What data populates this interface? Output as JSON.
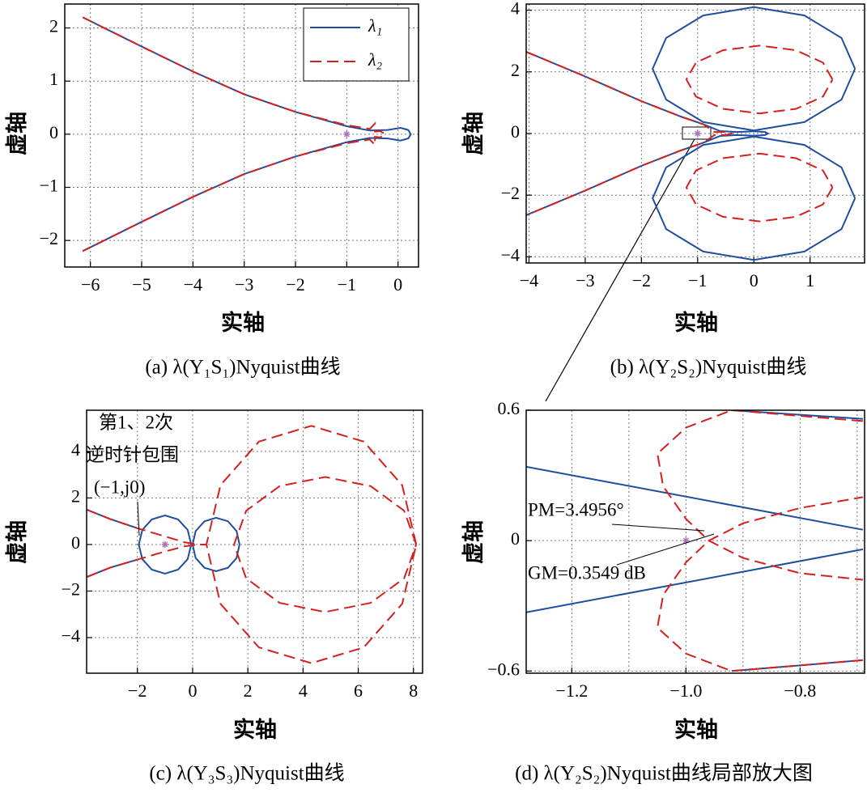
{
  "chart_data": [
    {
      "type": "line",
      "title": "(a)  λ(Y₁S₁)Nyquist曲线",
      "xlabel": "实轴",
      "ylabel": "虚轴",
      "xlim": [
        -6.5,
        0.4
      ],
      "ylim": [
        -2.5,
        2.45
      ],
      "xticks": [
        {
          "value": -6,
          "label": "−6"
        },
        {
          "value": -5,
          "label": "−5"
        },
        {
          "value": -4,
          "label": "−4"
        },
        {
          "value": -3,
          "label": "−3"
        },
        {
          "value": -2,
          "label": "−2"
        },
        {
          "value": -1,
          "label": "−1"
        },
        0
      ],
      "yticks": [
        {
          "value": -2,
          "label": "−2"
        },
        {
          "value": -1,
          "label": "−1"
        },
        0,
        1,
        2
      ],
      "grid": true,
      "legend": "upper right",
      "point": {
        "x": -1,
        "y": 0,
        "color": "#b070c0"
      },
      "series": [
        {
          "name": "λ₁",
          "color": "#1f4e9c",
          "dash": "solid",
          "x": [
            -6.15,
            -5,
            -4,
            -3,
            -2,
            -1,
            -0.55,
            -0.2,
            0.05,
            0.2,
            0.25,
            0.2,
            0.05,
            -0.2,
            -0.55,
            -1,
            -2,
            -3,
            -4,
            -5,
            -6.15
          ],
          "values": [
            2.2,
            1.65,
            1.18,
            0.75,
            0.42,
            0.15,
            0.07,
            0.08,
            0.12,
            0.08,
            0,
            -0.08,
            -0.12,
            -0.08,
            -0.07,
            -0.15,
            -0.42,
            -0.75,
            -1.18,
            -1.65,
            -2.2
          ]
        },
        {
          "name": "λ₂",
          "color": "#d42020",
          "dash": "dashed",
          "x": [
            -6.15,
            -5,
            -4,
            -3,
            -2,
            -1,
            -0.55,
            -0.45,
            -0.45,
            -0.35,
            -0.25,
            -0.35,
            -0.45,
            -0.45,
            -0.55,
            -1,
            -2,
            -3,
            -4,
            -5,
            -6.15
          ],
          "values": [
            2.2,
            1.65,
            1.18,
            0.75,
            0.42,
            0.17,
            0.1,
            0.2,
            0.05,
            0.06,
            0,
            -0.06,
            -0.05,
            -0.2,
            -0.1,
            -0.17,
            -0.42,
            -0.75,
            -1.18,
            -1.65,
            -2.2
          ]
        }
      ]
    },
    {
      "type": "line",
      "title": "(b)  λ(Y₂S₂)Nyquist曲线",
      "xlabel": "实轴",
      "ylabel": "虚轴",
      "xlim": [
        -4.05,
        1.97
      ],
      "ylim": [
        -4.2,
        4.2
      ],
      "xticks": [
        {
          "value": -4,
          "label": "−4"
        },
        {
          "value": -3,
          "label": "−3"
        },
        {
          "value": -2,
          "label": "−2"
        },
        {
          "value": -1,
          "label": "−1"
        },
        0,
        1
      ],
      "yticks": [
        {
          "value": -4,
          "label": "−4"
        },
        {
          "value": -2,
          "label": "−2"
        },
        0,
        2,
        4
      ],
      "grid": true,
      "point": {
        "x": -1,
        "y": 0,
        "color": "#b070c0"
      },
      "series": [
        {
          "color": "#1f4e9c",
          "dash": "solid",
          "x": [
            -4.05,
            -3,
            -2,
            -1.3,
            -0.9,
            -0.6,
            -0.3,
            0,
            0.2,
            0.25,
            0.2,
            0,
            -0.3,
            -0.6,
            -0.9,
            -1.3,
            -2,
            -3,
            -4.05,
            null,
            1.8,
            1.56,
            0.9,
            0,
            -0.9,
            -1.56,
            -1.8,
            -1.56,
            -0.9,
            0,
            0.9,
            1.56,
            1.8,
            null,
            1.8,
            1.56,
            0.9,
            0,
            -0.9,
            -1.56,
            -1.8,
            -1.56,
            -0.9,
            0,
            0.9,
            1.56,
            1.8
          ],
          "values": [
            2.65,
            1.85,
            1.05,
            0.55,
            0.3,
            0.08,
            0.05,
            0.07,
            0.05,
            0,
            -0.05,
            -0.07,
            -0.05,
            -0.08,
            -0.3,
            -0.55,
            -1.05,
            -1.85,
            -2.65,
            null,
            2.1,
            3.1,
            3.83,
            4.1,
            3.83,
            3.1,
            2.1,
            1.1,
            0.37,
            0.1,
            0.37,
            1.1,
            2.1,
            null,
            -2.1,
            -3.1,
            -3.83,
            -4.1,
            -3.83,
            -3.1,
            -2.1,
            -1.1,
            -0.37,
            -0.1,
            -0.37,
            -1.1,
            -2.1
          ]
        },
        {
          "color": "#d42020",
          "dash": "dashed",
          "x": [
            -4.05,
            -3,
            -2,
            -1.3,
            -0.9,
            -0.7,
            -0.5,
            -0.4,
            -0.5,
            -0.7,
            -0.9,
            -1.3,
            -2,
            -3,
            -4.05,
            null,
            1.4,
            1.23,
            0.75,
            0.1,
            -0.55,
            -1.03,
            -1.2,
            -1.03,
            -0.55,
            0.1,
            0.75,
            1.23,
            1.4,
            null,
            1.4,
            1.23,
            0.75,
            0.1,
            -0.55,
            -1.03,
            -1.2,
            -1.03,
            -0.55,
            0.1,
            0.75,
            1.23,
            1.4
          ],
          "values": [
            2.65,
            1.85,
            1.05,
            0.55,
            0.3,
            0.05,
            0.05,
            0,
            -0.05,
            -0.05,
            -0.3,
            -0.55,
            -1.05,
            -1.85,
            -2.65,
            null,
            1.75,
            2.3,
            2.7,
            2.85,
            2.7,
            2.3,
            1.75,
            1.2,
            0.8,
            0.65,
            0.8,
            1.2,
            1.75,
            null,
            -1.75,
            -2.3,
            -2.7,
            -2.85,
            -2.7,
            -2.3,
            -1.75,
            -1.2,
            -0.8,
            -0.65,
            -0.8,
            -1.2,
            -1.75
          ]
        }
      ]
    },
    {
      "type": "line",
      "title": "(c)  λ(Y₃S₃)Nyquist曲线",
      "xlabel": "实轴",
      "ylabel": "虚轴",
      "xlim": [
        -3.84,
        8.33
      ],
      "ylim": [
        -5.53,
        5.77
      ],
      "xticks": [
        {
          "value": -2,
          "label": "−2"
        },
        0,
        2,
        4,
        6,
        8
      ],
      "yticks": [
        {
          "value": -4,
          "label": "−4"
        },
        {
          "value": -2,
          "label": "−2"
        },
        0,
        2,
        4
      ],
      "grid": true,
      "point": {
        "x": -1,
        "y": 0,
        "color": "#b070c0"
      },
      "annotations": [
        "第1、2次",
        "逆时针包围",
        "(−1,j0)"
      ],
      "series": [
        {
          "color": "#1f4e9c",
          "dash": "solid",
          "x": [
            -3.84,
            -3,
            -2,
            null,
            -3.84,
            -3,
            -2,
            null,
            -0.05,
            -0.18,
            -0.53,
            -1,
            -1.48,
            -1.82,
            -1.95,
            -1.82,
            -1.48,
            -1,
            -0.53,
            -0.18,
            -0.05,
            null,
            1.7,
            1.59,
            1.28,
            0.85,
            0.43,
            0.11,
            0,
            0.11,
            0.43,
            0.85,
            1.28,
            1.59,
            1.7
          ],
          "values": [
            1.5,
            1.1,
            0.7,
            null,
            -1.4,
            -1.0,
            -0.65,
            null,
            0,
            0.63,
            1.08,
            1.25,
            1.08,
            0.63,
            0,
            -0.63,
            -1.08,
            -1.25,
            -1.08,
            -0.63,
            0,
            null,
            0,
            0.58,
            1.0,
            1.15,
            1.0,
            0.58,
            0,
            -0.58,
            -1.0,
            -1.15,
            -1.0,
            -0.58,
            0
          ]
        },
        {
          "color": "#d42020",
          "dash": "dashed",
          "x": [
            -3.84,
            -3,
            -2,
            -1,
            -0.3,
            0.2,
            0.5,
            null,
            -3.84,
            -3,
            -2,
            -1,
            -0.3,
            0.2,
            null,
            8.1,
            7.59,
            6.2,
            4.3,
            2.4,
            1.01,
            0.5,
            1.01,
            2.4,
            4.3,
            6.2,
            7.59,
            8.1,
            null,
            8.1,
            7.66,
            6.45,
            4.8,
            3.15,
            1.94,
            1.5,
            1.94,
            3.15,
            4.8,
            6.45,
            7.66,
            8.1
          ],
          "values": [
            1.5,
            1.1,
            0.7,
            0.35,
            0.1,
            0,
            0,
            null,
            -1.4,
            -1.0,
            -0.65,
            -0.3,
            -0.08,
            0,
            null,
            0,
            2.55,
            4.42,
            5.1,
            4.42,
            2.55,
            0,
            -2.55,
            -4.42,
            -5.1,
            -4.42,
            -2.55,
            0,
            null,
            0,
            1.45,
            2.51,
            2.9,
            2.51,
            1.45,
            0,
            -1.45,
            -2.51,
            -2.9,
            -2.51,
            -1.45,
            0
          ]
        }
      ]
    },
    {
      "type": "line",
      "title": "(d)  λ(Y₂S₂)Nyquist曲线局部放大图",
      "xlabel": "实轴",
      "ylabel": "虚轴",
      "xlim": [
        -1.28,
        -0.687
      ],
      "ylim": [
        -0.61,
        0.6
      ],
      "xticks": [
        {
          "value": -1.2,
          "label": "−1.2"
        },
        {
          "value": -1.0,
          "label": "−1.0"
        },
        {
          "value": -0.8,
          "label": "−0.8"
        }
      ],
      "xminor": [
        -1.1,
        -0.9,
        -0.7
      ],
      "yticks": [
        {
          "value": -0.6,
          "label": "−0.6"
        },
        0,
        0.6
      ],
      "grid": true,
      "point": {
        "x": -1,
        "y": 0,
        "color": "#b070c0"
      },
      "annotations": [
        "PM=3.4956°",
        "GM=0.3549 dB"
      ],
      "series": [
        {
          "color": "#1f4e9c",
          "dash": "solid",
          "x": [
            -1.28,
            -0.69,
            null,
            -1.28,
            -0.69,
            null,
            -0.92,
            -0.69,
            null,
            -0.92,
            -0.69
          ],
          "values": [
            0.34,
            0.05,
            null,
            -0.33,
            -0.04,
            null,
            0.6,
            0.56,
            null,
            -0.6,
            -0.55
          ]
        },
        {
          "color": "#d42020",
          "dash": "dashed",
          "x": [
            -0.69,
            -0.92,
            -1.0,
            -1.05,
            -1.04,
            -1.0,
            -0.96,
            -0.9,
            -0.8,
            -0.69,
            null,
            -0.69,
            -0.92,
            -1.0,
            -1.05,
            -1.04,
            -1.0,
            -0.96,
            -0.9,
            -0.8,
            -0.69
          ],
          "values": [
            0.55,
            0.6,
            0.52,
            0.4,
            0.25,
            0.1,
            0,
            0.08,
            0.15,
            0.2,
            null,
            -0.55,
            -0.6,
            -0.52,
            -0.4,
            -0.25,
            -0.1,
            0,
            -0.08,
            -0.15,
            -0.18
          ]
        }
      ]
    }
  ]
}
